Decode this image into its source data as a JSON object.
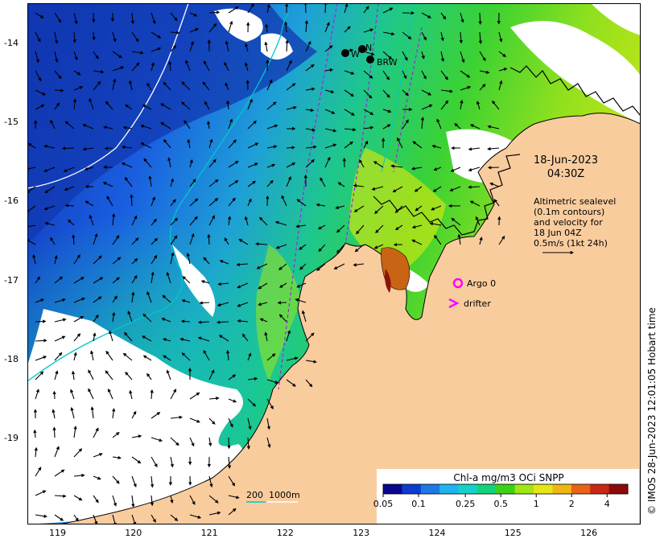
{
  "map": {
    "date_line1": "18-Jun-2023",
    "date_line2": "04:30Z",
    "altimetry_lines": [
      "Altimetric sealevel",
      "(0.1m contours)",
      "and velocity for",
      "18 Jun 04Z",
      "0.5m/s (1kt 24h)"
    ],
    "legend": {
      "argo_label": "Argo 0",
      "drifter_label": "drifter",
      "argo_color": "#ff00ff",
      "drifter_color": "#ff00ff"
    },
    "stations": [
      "W",
      "N",
      "BRW"
    ],
    "depth_contours": {
      "label_200": "200",
      "label_1000": "1000m",
      "color_200": "#00c8c8",
      "color_1000": "#ffffff"
    },
    "colorbar": {
      "title": "Chl-a mg/m3 OCi SNPP",
      "ticks": [
        "0.05",
        "0.1",
        "0.25",
        "0.5",
        "1",
        "2",
        "4"
      ],
      "colors": [
        "#08088c",
        "#0a3ccf",
        "#1e78e6",
        "#1eb4f0",
        "#14d2c8",
        "#14d278",
        "#3cd214",
        "#a0e614",
        "#e6e614",
        "#f0b414",
        "#e66414",
        "#c82814",
        "#8c0a0a"
      ]
    },
    "lon_ticks": [
      "119",
      "120",
      "121",
      "122",
      "123",
      "124",
      "125",
      "126"
    ],
    "lat_ticks": [
      "-14",
      "-15",
      "-16",
      "-17",
      "-18",
      "-19"
    ],
    "copyright": "© IMOS 28-Jun-2023 12:01:05 Hobart time",
    "colors": {
      "land": "#f9cc9e",
      "coast": "#000000",
      "cloud": "#ffffff",
      "deep_water": "#1440c8",
      "shelf_water": "#14c864",
      "track": "#a020f0"
    }
  }
}
